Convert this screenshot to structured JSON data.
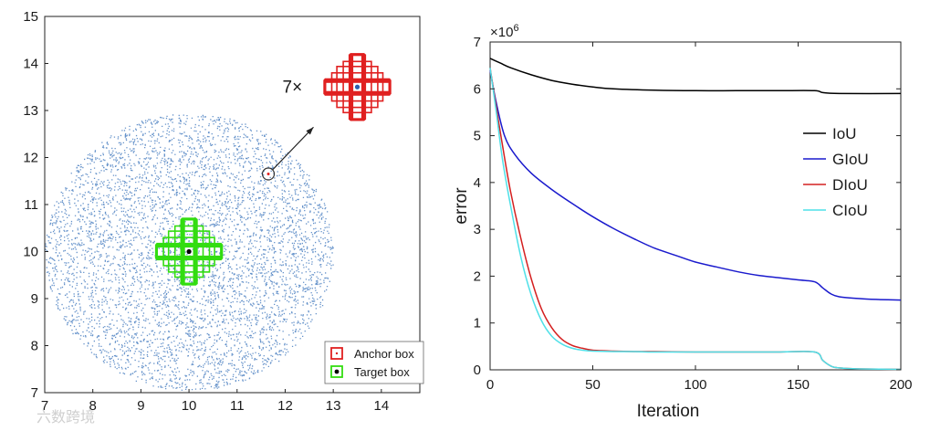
{
  "chart_data": [
    {
      "type": "scatter",
      "xlim": [
        7,
        14.8
      ],
      "ylim": [
        7,
        15
      ],
      "xticks": [
        "7",
        "8",
        "9",
        "10",
        "11",
        "12",
        "13",
        "14"
      ],
      "yticks": [
        "7",
        "8",
        "9",
        "10",
        "11",
        "12",
        "13",
        "14",
        "15"
      ],
      "point_cloud": {
        "center": [
          10,
          10
        ],
        "radius": 3,
        "color": "#4a7fc1"
      },
      "target_center": [
        10,
        10
      ],
      "anchor_sample": [
        11.65,
        11.65
      ],
      "zoom_center": [
        13.5,
        13.5
      ],
      "multiplier_label": "7×",
      "legend": [
        {
          "name": "Anchor box",
          "color": "#e02020"
        },
        {
          "name": "Target box",
          "color": "#33dd11"
        }
      ],
      "legend_position": "bottom-right",
      "grid": false
    },
    {
      "type": "line",
      "xlabel": "Iteration",
      "ylabel": "error",
      "exponent_label": "×10",
      "exponent_power": "6",
      "xlim": [
        0,
        200
      ],
      "ylim": [
        0,
        7
      ],
      "xticks": [
        "0",
        "50",
        "100",
        "150",
        "200"
      ],
      "yticks": [
        "0",
        "1",
        "2",
        "3",
        "4",
        "5",
        "6",
        "7"
      ],
      "legend_position": "center-right",
      "grid": false,
      "series": [
        {
          "name": "IoU",
          "color": "#000000",
          "x": [
            0,
            5,
            10,
            20,
            30,
            40,
            50,
            60,
            80,
            100,
            120,
            140,
            158,
            162,
            170,
            200
          ],
          "y": [
            6.65,
            6.55,
            6.45,
            6.3,
            6.18,
            6.1,
            6.04,
            6.0,
            5.97,
            5.96,
            5.96,
            5.96,
            5.96,
            5.92,
            5.9,
            5.9
          ]
        },
        {
          "name": "GIoU",
          "color": "#1a1acd",
          "x": [
            0,
            3,
            7,
            12,
            20,
            30,
            40,
            50,
            60,
            70,
            80,
            90,
            100,
            110,
            120,
            130,
            140,
            150,
            158,
            162,
            166,
            170,
            180,
            190,
            200
          ],
          "y": [
            6.4,
            5.7,
            5.0,
            4.6,
            4.2,
            3.85,
            3.55,
            3.27,
            3.02,
            2.8,
            2.6,
            2.45,
            2.3,
            2.2,
            2.1,
            2.02,
            1.97,
            1.92,
            1.88,
            1.75,
            1.62,
            1.56,
            1.52,
            1.5,
            1.49
          ]
        },
        {
          "name": "DIoU",
          "color": "#d42020",
          "x": [
            0,
            3,
            6,
            10,
            15,
            20,
            25,
            30,
            35,
            40,
            45,
            50,
            60,
            70,
            80,
            100,
            120,
            140,
            158,
            162,
            166,
            170,
            180,
            200
          ],
          "y": [
            6.45,
            5.6,
            4.8,
            3.8,
            2.8,
            1.95,
            1.3,
            0.9,
            0.65,
            0.52,
            0.46,
            0.42,
            0.4,
            0.39,
            0.39,
            0.38,
            0.38,
            0.38,
            0.38,
            0.2,
            0.08,
            0.04,
            0.02,
            0.01
          ]
        },
        {
          "name": "CIoU",
          "color": "#4fe0e8",
          "x": [
            0,
            3,
            6,
            10,
            15,
            20,
            25,
            30,
            35,
            40,
            45,
            50,
            60,
            70,
            80,
            100,
            120,
            140,
            158,
            162,
            166,
            170,
            180,
            200
          ],
          "y": [
            6.45,
            5.5,
            4.5,
            3.5,
            2.4,
            1.6,
            1.05,
            0.72,
            0.55,
            0.46,
            0.42,
            0.4,
            0.39,
            0.39,
            0.38,
            0.38,
            0.38,
            0.38,
            0.38,
            0.2,
            0.08,
            0.04,
            0.02,
            0.01
          ]
        }
      ]
    }
  ],
  "watermark": "六数跨境"
}
